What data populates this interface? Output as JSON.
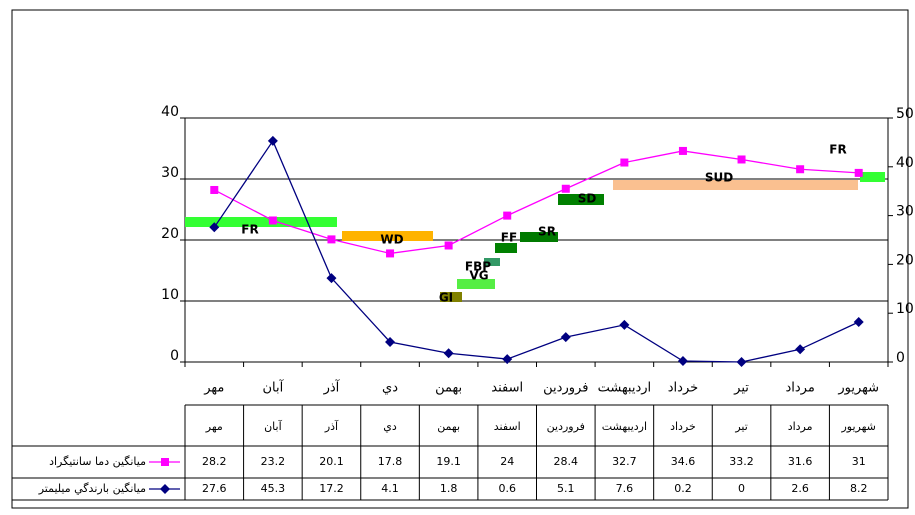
{
  "chart_data": {
    "type": "line",
    "categories": [
      "مهر",
      "آبان",
      "آذر",
      "دي",
      "بهمن",
      "اسفند",
      "فروردين",
      "ارديبهشت",
      "خرداد",
      "تير",
      "مرداد",
      "شهريور"
    ],
    "series": [
      {
        "name": "ميانگين دما سانتيگراد",
        "color": "#ff00ff",
        "marker": "square",
        "values": [
          28.2,
          23.2,
          20.1,
          17.8,
          19.1,
          24,
          28.4,
          32.7,
          34.6,
          33.2,
          31.6,
          31
        ]
      },
      {
        "name": "ميانگين بارندگي ميليمتر",
        "color": "#000080",
        "marker": "diamond",
        "axis": "y2",
        "values": [
          27.6,
          45.3,
          17.2,
          4.1,
          1.8,
          0.6,
          5.1,
          7.6,
          0.2,
          0,
          2.6,
          8.2
        ]
      }
    ],
    "ylim": [
      0,
      40
    ],
    "yticks": [
      0,
      10,
      20,
      30,
      40
    ],
    "y2lim": [
      0,
      50
    ],
    "y2ticks": [
      0,
      10,
      20,
      30,
      40,
      50
    ],
    "grid": true,
    "annotations": [
      {
        "label": "FR",
        "color": "#33ff33"
      },
      {
        "label": "WD",
        "color": "#ffb300"
      },
      {
        "label": "GI",
        "color": "#808000"
      },
      {
        "label": "VG",
        "color": "#55ee44"
      },
      {
        "label": "FBP",
        "color": "#339966"
      },
      {
        "label": "FF",
        "color": "#008000"
      },
      {
        "label": "SR",
        "color": "#007a00"
      },
      {
        "label": "SD",
        "color": "#008000"
      },
      {
        "label": "SUD",
        "color": "#fac090"
      },
      {
        "label": "FR",
        "color": "#33ff33"
      }
    ]
  }
}
